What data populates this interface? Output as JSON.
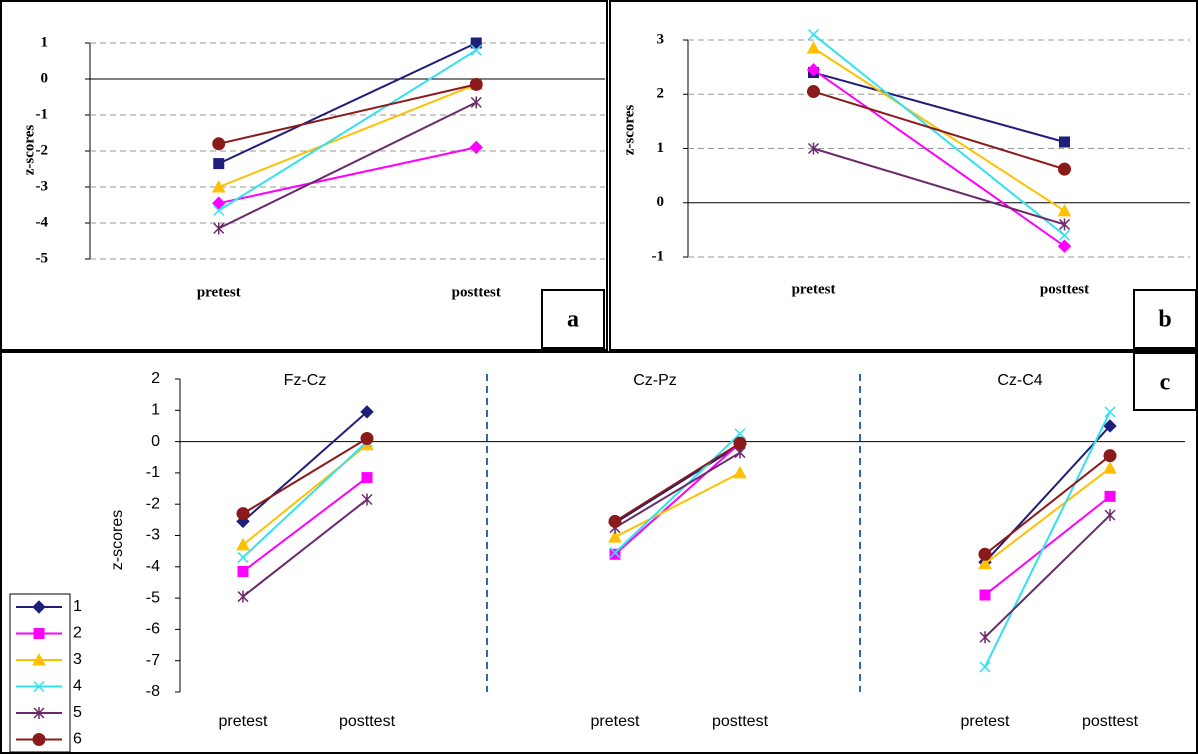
{
  "chart_data": [
    {
      "type": "line",
      "panel_label": "a",
      "ylabel": "z-scores",
      "categories": [
        "pretest",
        "posttest"
      ],
      "ylim": [
        -5,
        1
      ],
      "yticks": [
        1,
        0,
        -1,
        -2,
        -3,
        -4,
        -5
      ],
      "grid": true,
      "series": [
        {
          "color": "#1f1f7a",
          "marker": "square",
          "values": [
            -2.35,
            1.0
          ]
        },
        {
          "color": "#ff00ff",
          "marker": "diamond",
          "values": [
            -3.45,
            -1.9
          ]
        },
        {
          "color": "#ffc000",
          "marker": "triangle",
          "values": [
            -3.0,
            -0.15
          ]
        },
        {
          "color": "#33e0f0",
          "marker": "x",
          "values": [
            -3.65,
            0.8
          ]
        },
        {
          "color": "#6b2a6b",
          "marker": "star",
          "values": [
            -4.15,
            -0.65
          ]
        },
        {
          "color": "#8b1a1a",
          "marker": "circle",
          "values": [
            -1.8,
            -0.15
          ]
        }
      ]
    },
    {
      "type": "line",
      "panel_label": "b",
      "ylabel": "z-scores",
      "categories": [
        "pretest",
        "posttest"
      ],
      "ylim": [
        -1,
        3
      ],
      "yticks": [
        3,
        2,
        1,
        0,
        -1
      ],
      "grid": true,
      "series": [
        {
          "color": "#1f1f7a",
          "marker": "square",
          "values": [
            2.4,
            1.12
          ]
        },
        {
          "color": "#ff00ff",
          "marker": "diamond",
          "values": [
            2.45,
            -0.8
          ]
        },
        {
          "color": "#ffc000",
          "marker": "triangle",
          "values": [
            2.85,
            -0.15
          ]
        },
        {
          "color": "#33e0f0",
          "marker": "x",
          "values": [
            3.1,
            -0.6
          ]
        },
        {
          "color": "#6b2a6b",
          "marker": "star",
          "values": [
            1.0,
            -0.4
          ]
        },
        {
          "color": "#8b1a1a",
          "marker": "circle",
          "values": [
            2.05,
            0.62
          ]
        }
      ]
    },
    {
      "type": "line",
      "panel_label": "c",
      "ylabel": "z-scores",
      "groups": [
        "Fz-Cz",
        "Cz-Pz",
        "Cz-C4"
      ],
      "categories": [
        "pretest",
        "posttest",
        "pretest",
        "posttest",
        "pretest",
        "posttest"
      ],
      "ylim": [
        -8,
        2
      ],
      "yticks": [
        2,
        1,
        0,
        -1,
        -2,
        -3,
        -4,
        -5,
        -6,
        -7,
        -8
      ],
      "grid": false,
      "legend": "bottom-left",
      "series": [
        {
          "name": "1",
          "color": "#1f1f7a",
          "marker": "diamond",
          "values": [
            -2.55,
            0.95,
            -2.6,
            -0.1,
            -3.85,
            0.5
          ]
        },
        {
          "name": "2",
          "color": "#ff00ff",
          "marker": "square",
          "values": [
            -4.15,
            -1.15,
            -3.6,
            -0.05,
            -4.9,
            -1.75
          ]
        },
        {
          "name": "3",
          "color": "#ffc000",
          "marker": "triangle",
          "values": [
            -3.3,
            -0.1,
            -3.05,
            -1.0,
            -3.9,
            -0.85
          ]
        },
        {
          "name": "4",
          "color": "#33e0f0",
          "marker": "x",
          "values": [
            -3.7,
            0.0,
            -3.55,
            0.25,
            -7.2,
            0.95
          ]
        },
        {
          "name": "5",
          "color": "#6b2a6b",
          "marker": "star",
          "values": [
            -4.95,
            -1.85,
            -2.75,
            -0.35,
            -6.25,
            -2.35
          ]
        },
        {
          "name": "6",
          "color": "#8b1a1a",
          "marker": "circle",
          "values": [
            -2.3,
            0.1,
            -2.55,
            -0.05,
            -3.6,
            -0.45
          ]
        }
      ]
    }
  ]
}
